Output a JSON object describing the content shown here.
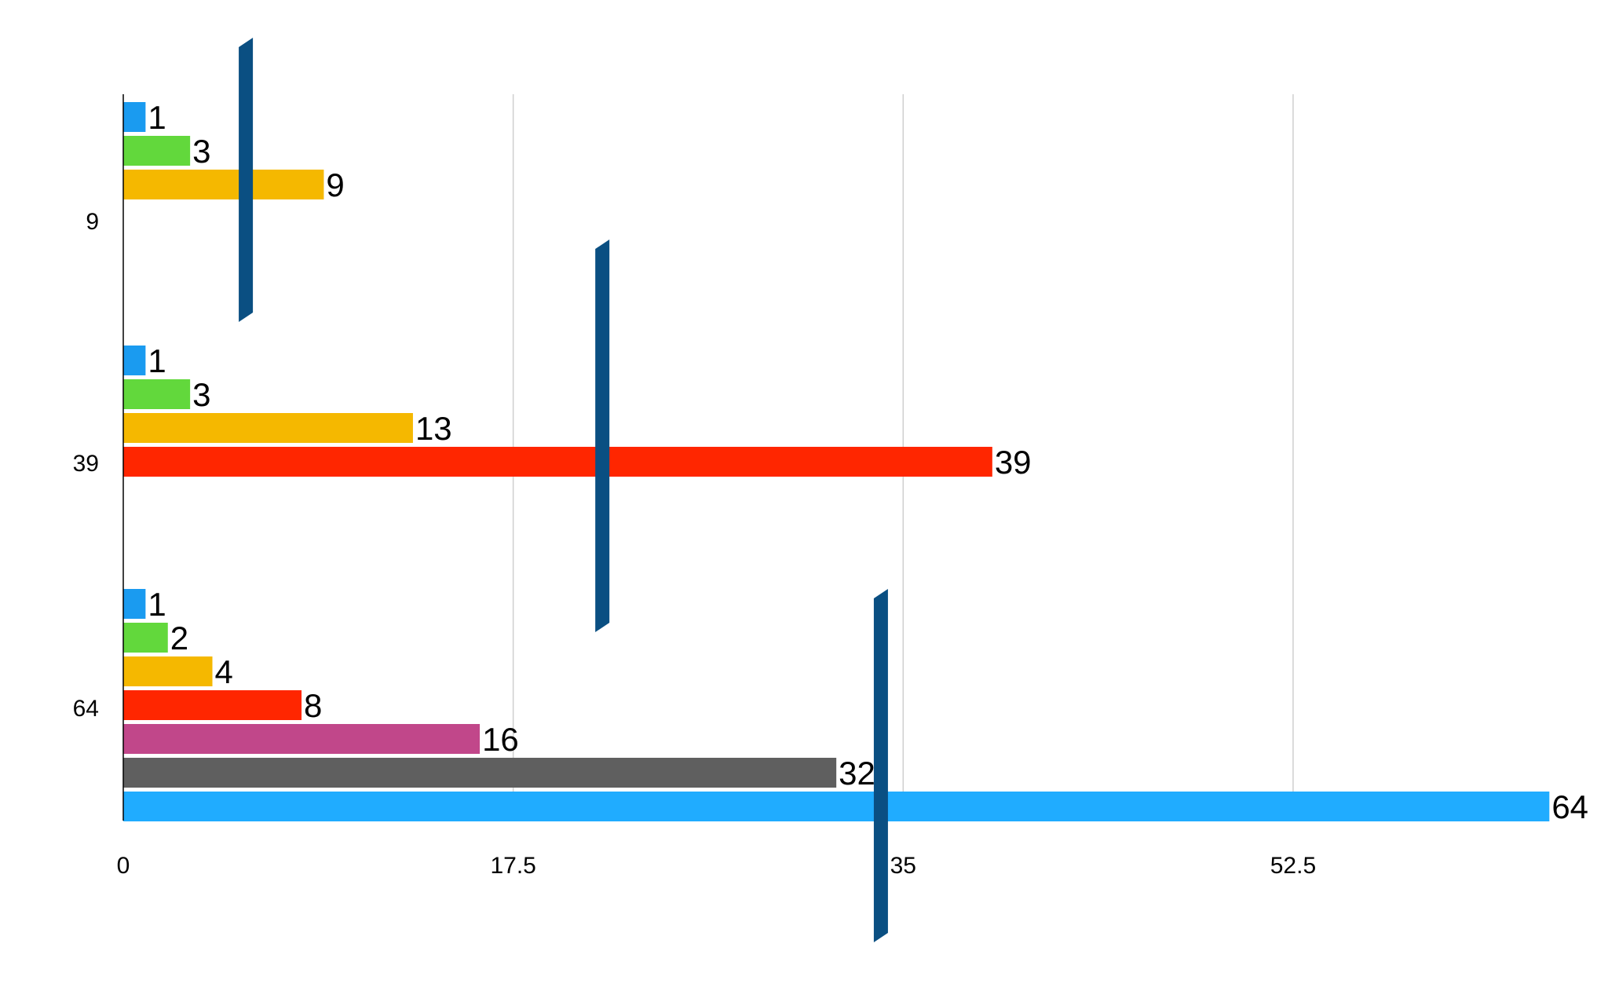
{
  "chart_data": {
    "type": "bar",
    "orientation": "horizontal",
    "title": "",
    "xlabel": "",
    "ylabel": "",
    "xlim": [
      0,
      70
    ],
    "x_ticks": [
      0,
      17.5,
      35,
      52.5
    ],
    "x_tick_labels": [
      "0",
      "17.5",
      "35",
      "52.5"
    ],
    "grid": true,
    "legend": "none",
    "groups": [
      {
        "label": "9",
        "values": [
          1,
          3,
          9
        ],
        "data_labels": [
          "1",
          "3",
          "9"
        ],
        "error_bar_center": 5.5
      },
      {
        "label": "39",
        "values": [
          1,
          3,
          13,
          39
        ],
        "data_labels": [
          "1",
          "3",
          "13",
          "39"
        ],
        "error_bar_center": 21.5
      },
      {
        "label": "64",
        "values": [
          1,
          2,
          4,
          8,
          16,
          32,
          64
        ],
        "data_labels": [
          "1",
          "2",
          "4",
          "8",
          "16",
          "32",
          "64"
        ],
        "error_bar_center": 34
      }
    ],
    "bar_colors": [
      "#1a9bf0",
      "#62d83c",
      "#f5b800",
      "#ff2600",
      "#c1478a",
      "#5f5f5f",
      "#20acff"
    ],
    "error_bar_color": "#0a4f82",
    "grid_color": "#cfcfcf",
    "axis_color": "#000000"
  }
}
